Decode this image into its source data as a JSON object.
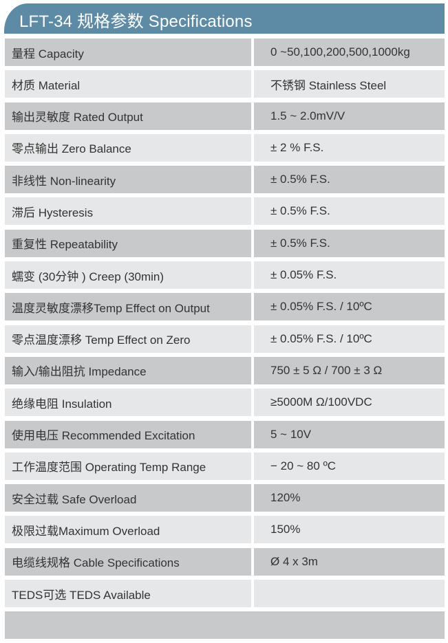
{
  "header": {
    "title": "LFT-34 规格参数 Specifications",
    "color": "#5d8ba5"
  },
  "rows": [
    {
      "label": "量程 Capacity",
      "value": "0 ~50,100,200,500,1000kg"
    },
    {
      "label": "材质 Material",
      "value": "不锈钢 Stainless Steel"
    },
    {
      "label": "输出灵敏度 Rated Output",
      "value": "1.5 ~ 2.0mV/V"
    },
    {
      "label": "零点输出  Zero Balance",
      "value": "± 2 % F.S."
    },
    {
      "label": "非线性 Non-linearity",
      "value": "± 0.5% F.S."
    },
    {
      "label": "滞后 Hysteresis",
      "value": "± 0.5% F.S."
    },
    {
      "label": "重复性 Repeatability",
      "value": "± 0.5% F.S."
    },
    {
      "label": "蠕变 (30分钟 ) Creep (30min)",
      "value": "± 0.05% F.S."
    },
    {
      "label": "温度灵敏度漂移Temp Effect on Output",
      "value": "± 0.05% F.S. / 10ºC"
    },
    {
      "label": "零点温度漂移 Temp Effect on Zero",
      "value": "± 0.05% F.S. / 10ºC"
    },
    {
      "label": "输入/输出阻抗 Impedance",
      "value": "750 ± 5 Ω  / 700 ± 3 Ω"
    },
    {
      "label": "绝缘电阻  Insulation",
      "value": "≥5000M Ω/100VDC"
    },
    {
      "label": "使用电压 Recommended Excitation",
      "value": "5 ~ 10V"
    },
    {
      "label": "工作温度范围 Operating Temp  Range",
      "value": "− 20 ~ 80 ºC"
    },
    {
      "label": "安全过载 Safe Overload",
      "value": "120%"
    },
    {
      "label": "极限过载Maximum Overload",
      "value": "150%"
    },
    {
      "label": "电缆线规格 Cable Specifications",
      "value": "Ø 4 x 3m"
    },
    {
      "label": "TEDS可选 TEDS Available",
      "value": ""
    }
  ]
}
